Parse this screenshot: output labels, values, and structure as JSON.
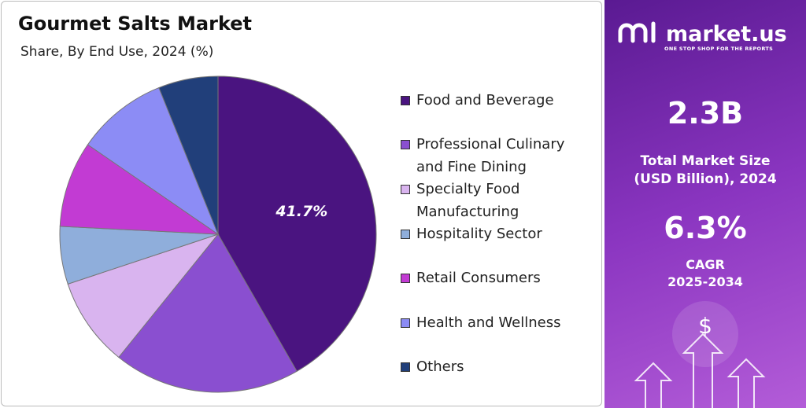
{
  "chart_data": {
    "type": "pie",
    "title": "Gourmet Salts Market",
    "subtitle": "Share, By End Use, 2024 (%)",
    "categories": [
      "Food and Beverage",
      "Professional Culinary and Fine Dining",
      "Specialty Food Manufacturing",
      "Hospitality Sector",
      "Retail Consumers",
      "Health and Wellness",
      "Others"
    ],
    "values": [
      41.7,
      19.1,
      9.1,
      5.9,
      8.8,
      9.3,
      6.1
    ],
    "value_labels": [
      "41.7%",
      null,
      null,
      null,
      null,
      null,
      null
    ],
    "colors": [
      "#4a1480",
      "#8a4fd0",
      "#d9b4ef",
      "#8faedb",
      "#c23bd3",
      "#8c8cf5",
      "#213f7a"
    ]
  },
  "panel": {
    "logo": "market.us",
    "tagline": "ONE STOP SHOP FOR THE REPORTS",
    "market_size": "2.3B",
    "market_size_label": "Total Market Size (USD Billion), 2024",
    "cagr": "6.3%",
    "cagr_label": "CAGR",
    "cagr_period": "2025-2034",
    "icon": "$"
  }
}
